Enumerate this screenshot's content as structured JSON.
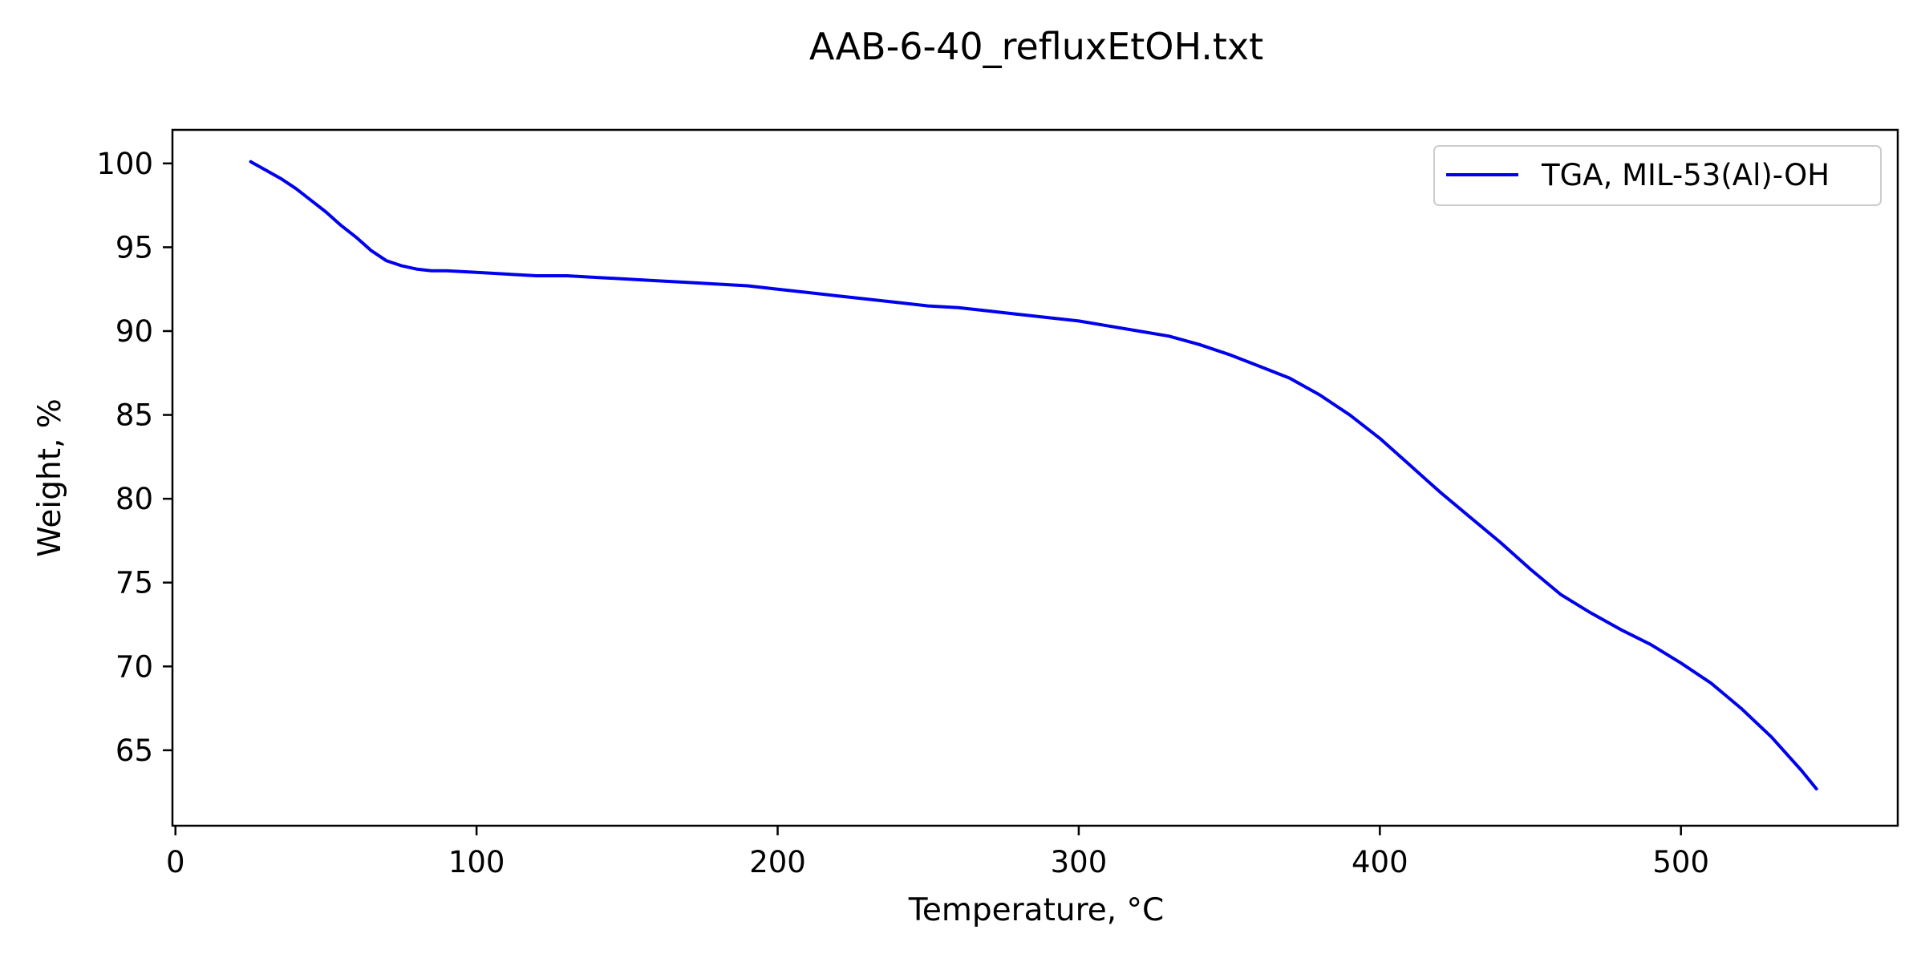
{
  "chart_data": {
    "type": "line",
    "title": "AAB-6-40_refluxEtOH.txt",
    "xlabel": "Temperature, °C",
    "ylabel": "Weight, %",
    "xlim": [
      -1,
      572
    ],
    "ylim": [
      60.5,
      102
    ],
    "x_ticks": [
      0,
      100,
      200,
      300,
      400,
      500
    ],
    "y_ticks": [
      65,
      70,
      75,
      80,
      85,
      90,
      95,
      100
    ],
    "grid": false,
    "legend_position": "top-right",
    "series": [
      {
        "name": "TGA, MIL-53(Al)-OH",
        "color": "#0000ee",
        "x": [
          25,
          30,
          35,
          40,
          45,
          50,
          55,
          60,
          65,
          70,
          75,
          80,
          85,
          90,
          100,
          110,
          120,
          130,
          140,
          150,
          160,
          170,
          180,
          190,
          200,
          210,
          220,
          230,
          240,
          250,
          260,
          270,
          280,
          290,
          300,
          310,
          320,
          330,
          340,
          350,
          360,
          370,
          380,
          390,
          400,
          410,
          420,
          430,
          440,
          450,
          460,
          470,
          480,
          490,
          500,
          510,
          520,
          530,
          540,
          545
        ],
        "y": [
          100.1,
          99.6,
          99.1,
          98.5,
          97.8,
          97.1,
          96.3,
          95.6,
          94.8,
          94.2,
          93.9,
          93.7,
          93.6,
          93.6,
          93.5,
          93.4,
          93.3,
          93.3,
          93.2,
          93.1,
          93.0,
          92.9,
          92.8,
          92.7,
          92.5,
          92.3,
          92.1,
          91.9,
          91.7,
          91.5,
          91.4,
          91.2,
          91.0,
          90.8,
          90.6,
          90.3,
          90.0,
          89.7,
          89.2,
          88.6,
          87.9,
          87.2,
          86.2,
          85.0,
          83.6,
          82.0,
          80.4,
          78.9,
          77.4,
          75.8,
          74.3,
          73.2,
          72.2,
          71.3,
          70.2,
          69.0,
          67.5,
          65.8,
          63.8,
          62.7
        ]
      }
    ]
  }
}
